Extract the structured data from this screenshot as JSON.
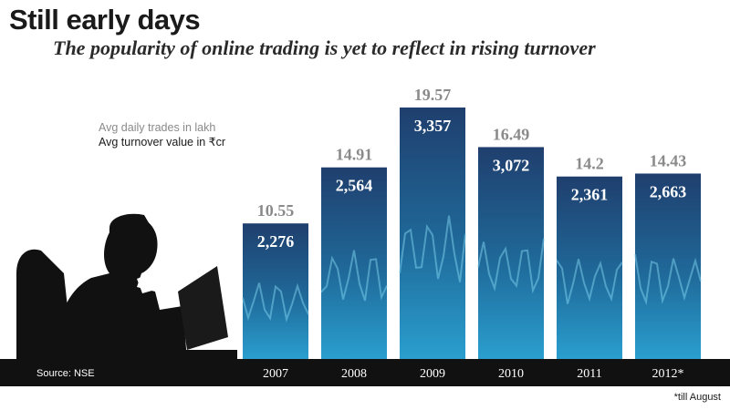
{
  "title": "Still early days",
  "subtitle": "The popularity of online trading is yet to reflect in rising turnover",
  "legend": {
    "trades": "Avg daily trades in lakh",
    "turnover": "Avg turnover value in ₹cr"
  },
  "source": "Source: NSE",
  "footnote": "*till August",
  "colors": {
    "bar_top": "#1f3f6e",
    "bar_bottom": "#2a9fcf",
    "trades_label": "#8a8a8a",
    "turnover_label": "#ffffff",
    "base_band": "#111111"
  },
  "chart_data": {
    "type": "bar",
    "categories": [
      "2007",
      "2008",
      "2009",
      "2010",
      "2011",
      "2012*"
    ],
    "series": [
      {
        "name": "Avg daily trades in lakh",
        "values": [
          10.55,
          14.91,
          19.57,
          16.49,
          14.2,
          14.43
        ]
      },
      {
        "name": "Avg turnover value in ₹cr",
        "values": [
          2276,
          2564,
          3357,
          3072,
          2361,
          2663
        ]
      }
    ],
    "trades_labels": [
      "10.55",
      "14.91",
      "19.57",
      "16.49",
      "14.2",
      "14.43"
    ],
    "turnover_labels": [
      "2,276",
      "2,564",
      "3,357",
      "3,072",
      "2,361",
      "2,663"
    ]
  }
}
